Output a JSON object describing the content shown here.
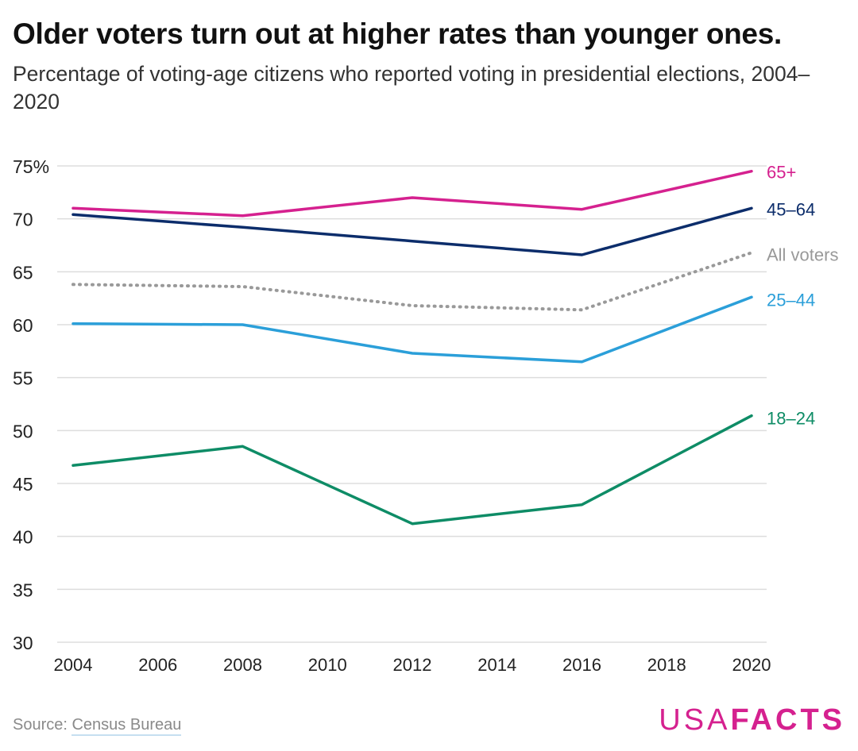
{
  "header": {
    "title": "Older voters turn out at higher rates than younger ones.",
    "subtitle": "Percentage of voting-age citizens who reported voting in presidential elections, 2004–2020"
  },
  "footer": {
    "source_prefix": "Source: ",
    "source_link": "Census Bureau",
    "logo_usa": "USA",
    "logo_facts": "FACTS"
  },
  "colors": {
    "65+": "#d5218f",
    "45–64": "#0c2d6b",
    "All voters": "#999999",
    "25–44": "#2b9fd9",
    "18–24": "#0e8c66",
    "grid": "#dddddd",
    "brand": "#d5218f"
  },
  "chart_data": {
    "type": "line",
    "x": [
      2004,
      2008,
      2012,
      2016,
      2020
    ],
    "xticks": [
      "2004",
      "2006",
      "2008",
      "2010",
      "2012",
      "2014",
      "2016",
      "2018",
      "2020"
    ],
    "xlim": [
      2004,
      2020
    ],
    "yticks": [
      "75%",
      "70",
      "65",
      "60",
      "55",
      "50",
      "45",
      "40",
      "35",
      "30"
    ],
    "ylim": [
      30,
      75
    ],
    "grid": "horizontal",
    "legend": "direct labels at line ends",
    "series": [
      {
        "name": "65+",
        "values": [
          71.0,
          70.3,
          72.0,
          70.9,
          74.5
        ],
        "style": "solid"
      },
      {
        "name": "45–64",
        "values": [
          70.4,
          69.2,
          67.9,
          66.6,
          71.0
        ],
        "style": "solid"
      },
      {
        "name": "All voters",
        "values": [
          63.8,
          63.6,
          61.8,
          61.4,
          66.8
        ],
        "style": "dotted"
      },
      {
        "name": "25–44",
        "values": [
          60.1,
          60.0,
          57.3,
          56.5,
          62.6
        ],
        "style": "solid"
      },
      {
        "name": "18–24",
        "values": [
          46.7,
          48.5,
          41.2,
          43.0,
          51.4
        ],
        "style": "solid"
      }
    ]
  }
}
